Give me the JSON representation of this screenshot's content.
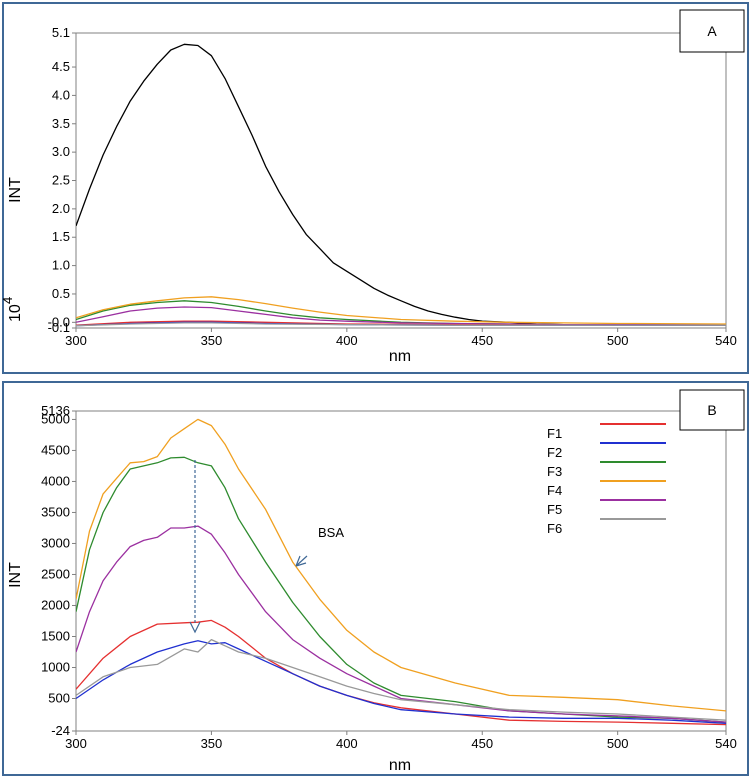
{
  "chart_data": [
    {
      "type": "line",
      "panel_label": "A",
      "xlabel": "nm",
      "ylabel": "INT",
      "y_multiplier_label": "10",
      "y_multiplier_exp": "4",
      "xlim": [
        300,
        540
      ],
      "ylim": [
        -0.1,
        5.1
      ],
      "xticks": [
        "300",
        "350",
        "400",
        "450",
        "500",
        "540"
      ],
      "xtick_values": [
        300,
        350,
        400,
        450,
        500,
        540
      ],
      "yticks": [
        "5.1",
        "4.5",
        "4.0",
        "3.5",
        "3.0",
        "2.5",
        "2.0",
        "1.5",
        "1.0",
        "0.5",
        "-0.0",
        "-0.1"
      ],
      "ytick_values": [
        5.1,
        4.5,
        4.0,
        3.5,
        3.0,
        2.5,
        2.0,
        1.5,
        1.0,
        0.5,
        0.0,
        -0.1
      ],
      "series": [
        {
          "name": "BSA",
          "color": "#000000",
          "x": [
            300,
            305,
            310,
            315,
            320,
            325,
            330,
            335,
            340,
            345,
            350,
            355,
            360,
            365,
            370,
            375,
            380,
            385,
            390,
            395,
            400,
            405,
            410,
            415,
            420,
            425,
            430,
            435,
            440,
            445,
            450,
            460,
            470,
            480,
            490,
            500,
            520,
            540
          ],
          "y": [
            1.7,
            2.35,
            2.95,
            3.45,
            3.9,
            4.25,
            4.55,
            4.8,
            4.9,
            4.88,
            4.7,
            4.3,
            3.8,
            3.3,
            2.75,
            2.3,
            1.9,
            1.55,
            1.3,
            1.05,
            0.9,
            0.75,
            0.6,
            0.48,
            0.38,
            0.28,
            0.2,
            0.14,
            0.09,
            0.05,
            0.02,
            0.0,
            -0.03,
            -0.04,
            -0.04,
            -0.05,
            -0.05,
            -0.05
          ]
        },
        {
          "name": "F3",
          "color": "#2e8b2e",
          "x": [
            300,
            310,
            320,
            330,
            340,
            350,
            360,
            370,
            380,
            390,
            400,
            420,
            440,
            460,
            480,
            500,
            540
          ],
          "y": [
            0.05,
            0.2,
            0.3,
            0.35,
            0.38,
            0.35,
            0.28,
            0.2,
            0.13,
            0.08,
            0.05,
            0.0,
            -0.02,
            -0.03,
            -0.04,
            -0.04,
            -0.05
          ]
        },
        {
          "name": "F4",
          "color": "#f0a020",
          "x": [
            300,
            310,
            320,
            330,
            340,
            350,
            360,
            370,
            380,
            390,
            400,
            420,
            440,
            460,
            480,
            500,
            540
          ],
          "y": [
            0.08,
            0.22,
            0.32,
            0.38,
            0.43,
            0.45,
            0.4,
            0.33,
            0.25,
            0.18,
            0.12,
            0.05,
            0.02,
            0.0,
            -0.01,
            -0.02,
            -0.03
          ]
        },
        {
          "name": "F5",
          "color": "#9b30a0",
          "x": [
            300,
            310,
            320,
            330,
            340,
            350,
            360,
            370,
            380,
            390,
            400,
            420,
            440,
            460,
            480,
            500,
            540
          ],
          "y": [
            0.0,
            0.1,
            0.2,
            0.25,
            0.27,
            0.26,
            0.2,
            0.14,
            0.08,
            0.04,
            0.02,
            -0.01,
            -0.02,
            -0.03,
            -0.04,
            -0.04,
            -0.05
          ]
        },
        {
          "name": "F1",
          "color": "#e53030",
          "x": [
            300,
            320,
            340,
            350,
            370,
            400,
            440,
            480,
            540
          ],
          "y": [
            -0.05,
            0.0,
            0.02,
            0.02,
            0.0,
            -0.03,
            -0.04,
            -0.05,
            -0.05
          ]
        },
        {
          "name": "F2",
          "color": "#2030d0",
          "x": [
            300,
            320,
            340,
            350,
            370,
            400,
            440,
            480,
            540
          ],
          "y": [
            -0.06,
            -0.02,
            0.0,
            0.0,
            -0.02,
            -0.04,
            -0.05,
            -0.05,
            -0.05
          ]
        },
        {
          "name": "F6",
          "color": "#999999",
          "x": [
            300,
            320,
            340,
            350,
            370,
            400,
            440,
            480,
            540
          ],
          "y": [
            -0.06,
            -0.03,
            -0.01,
            -0.01,
            -0.03,
            -0.04,
            -0.05,
            -0.05,
            -0.05
          ]
        }
      ]
    },
    {
      "type": "line",
      "panel_label": "B",
      "xlabel": "nm",
      "ylabel": "INT",
      "xlim": [
        300,
        540
      ],
      "ylim": [
        -24,
        5136
      ],
      "xticks": [
        "300",
        "350",
        "400",
        "450",
        "500",
        "540"
      ],
      "xtick_values": [
        300,
        350,
        400,
        450,
        500,
        540
      ],
      "yticks": [
        "5136",
        "5000",
        "4500",
        "4000",
        "3500",
        "3000",
        "2500",
        "2000",
        "1500",
        "1000",
        "500",
        "-24"
      ],
      "ytick_values": [
        5136,
        5000,
        4500,
        4000,
        3500,
        3000,
        2500,
        2000,
        1500,
        1000,
        500,
        -24
      ],
      "annotation": "BSA",
      "legend": [
        "F1",
        "F2",
        "F3",
        "F4",
        "F5",
        "F6"
      ],
      "series": [
        {
          "name": "F1",
          "color": "#e53030",
          "x": [
            300,
            310,
            320,
            330,
            340,
            345,
            350,
            355,
            360,
            370,
            380,
            390,
            400,
            410,
            420,
            440,
            460,
            480,
            500,
            520,
            540
          ],
          "y": [
            650,
            1150,
            1500,
            1700,
            1720,
            1730,
            1760,
            1650,
            1500,
            1150,
            900,
            700,
            550,
            430,
            350,
            250,
            150,
            130,
            120,
            100,
            80
          ]
        },
        {
          "name": "F2",
          "color": "#2030d0",
          "x": [
            300,
            310,
            320,
            330,
            340,
            345,
            350,
            355,
            360,
            370,
            380,
            390,
            400,
            410,
            420,
            440,
            460,
            480,
            500,
            520,
            540
          ],
          "y": [
            500,
            800,
            1050,
            1250,
            1380,
            1430,
            1380,
            1400,
            1300,
            1100,
            900,
            700,
            550,
            420,
            320,
            250,
            200,
            180,
            180,
            150,
            100
          ]
        },
        {
          "name": "F3",
          "color": "#2e8b2e",
          "x": [
            300,
            305,
            310,
            315,
            320,
            325,
            330,
            335,
            340,
            345,
            350,
            355,
            360,
            370,
            380,
            390,
            400,
            410,
            420,
            440,
            460,
            480,
            500,
            520,
            540
          ],
          "y": [
            1900,
            2900,
            3500,
            3900,
            4200,
            4250,
            4300,
            4380,
            4390,
            4300,
            4250,
            3900,
            3400,
            2700,
            2050,
            1500,
            1050,
            750,
            550,
            450,
            300,
            250,
            200,
            180,
            120
          ]
        },
        {
          "name": "F4",
          "color": "#f0a020",
          "x": [
            300,
            305,
            310,
            315,
            320,
            325,
            330,
            335,
            340,
            345,
            350,
            355,
            360,
            370,
            380,
            390,
            400,
            410,
            420,
            440,
            460,
            480,
            500,
            520,
            540
          ],
          "y": [
            2100,
            3200,
            3800,
            4050,
            4300,
            4320,
            4400,
            4700,
            4850,
            5000,
            4900,
            4600,
            4200,
            3550,
            2700,
            2100,
            1600,
            1250,
            1000,
            750,
            550,
            520,
            480,
            380,
            300
          ]
        },
        {
          "name": "F5",
          "color": "#9b30a0",
          "x": [
            300,
            305,
            310,
            315,
            320,
            325,
            330,
            335,
            340,
            345,
            350,
            355,
            360,
            370,
            380,
            390,
            400,
            410,
            420,
            440,
            460,
            480,
            500,
            520,
            540
          ],
          "y": [
            1250,
            1900,
            2400,
            2700,
            2950,
            3050,
            3100,
            3250,
            3250,
            3280,
            3150,
            2850,
            2500,
            1900,
            1450,
            1150,
            900,
            700,
            500,
            400,
            300,
            250,
            220,
            180,
            120
          ]
        },
        {
          "name": "F6",
          "color": "#999999",
          "x": [
            300,
            310,
            320,
            330,
            340,
            345,
            350,
            355,
            360,
            370,
            380,
            390,
            400,
            410,
            420,
            440,
            460,
            480,
            500,
            520,
            540
          ],
          "y": [
            550,
            850,
            1000,
            1050,
            1300,
            1250,
            1450,
            1350,
            1250,
            1150,
            1000,
            850,
            700,
            580,
            480,
            400,
            320,
            280,
            250,
            200,
            150
          ]
        }
      ]
    }
  ]
}
